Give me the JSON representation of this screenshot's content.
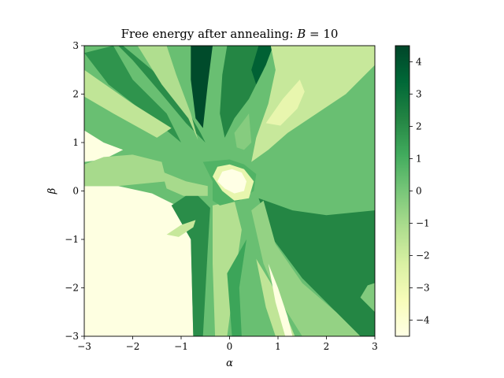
{
  "chart_data": {
    "type": "heatmap",
    "title": "Free energy after annealing: B = 10",
    "title_parts": {
      "prefix": "Free energy after annealing: ",
      "var": "B",
      "rest": " = 10"
    },
    "xlabel": "α",
    "ylabel": "β",
    "xlim": [
      -3,
      3
    ],
    "ylim": [
      -3,
      3
    ],
    "xticks": [
      -3,
      -2,
      -1,
      0,
      1,
      2,
      3
    ],
    "yticks": [
      -3,
      -2,
      -1,
      0,
      1,
      2,
      3
    ],
    "xtick_labels": [
      "−3",
      "−2",
      "−1",
      "0",
      "1",
      "2",
      "3"
    ],
    "ytick_labels": [
      "−3",
      "−2",
      "−1",
      "0",
      "1",
      "2",
      "3"
    ],
    "colormap": "YlGn",
    "colormap_stops": [
      "#ffffe5",
      "#f7fcb9",
      "#d9f0a3",
      "#addd8e",
      "#78c679",
      "#41ab5d",
      "#238443",
      "#006837",
      "#004529"
    ],
    "colorbar": {
      "range": [
        -4.5,
        4.5
      ],
      "ticks": [
        -4,
        -3,
        -2,
        -1,
        0,
        1,
        2,
        3,
        4
      ],
      "tick_labels": [
        "−4",
        "−3",
        "−2",
        "−1",
        "0",
        "1",
        "2",
        "3",
        "4"
      ]
    },
    "regions": [
      {
        "value": 0.3,
        "polygon": [
          [
            -3,
            3
          ],
          [
            3,
            3
          ],
          [
            3,
            -3
          ],
          [
            -3,
            -3
          ]
        ]
      },
      {
        "value": -4.4,
        "polygon": [
          [
            -3,
            0.1
          ],
          [
            -2.3,
            0.1
          ],
          [
            -1.6,
            -0.05
          ],
          [
            -1.1,
            -0.3
          ],
          [
            -0.8,
            -0.9
          ],
          [
            -0.75,
            -3
          ],
          [
            -3,
            -3
          ]
        ]
      },
      {
        "value": -4.4,
        "polygon": [
          [
            -3,
            1.25
          ],
          [
            -2.6,
            1.0
          ],
          [
            -2.2,
            0.85
          ],
          [
            -2.6,
            0.65
          ],
          [
            -3,
            0.6
          ]
        ]
      },
      {
        "value": -1.0,
        "polygon": [
          [
            -3,
            0.55
          ],
          [
            -2.6,
            0.7
          ],
          [
            -2.0,
            0.75
          ],
          [
            -1.4,
            0.6
          ],
          [
            -1.3,
            0.2
          ],
          [
            -2.3,
            0.1
          ],
          [
            -3,
            0.1
          ]
        ]
      },
      {
        "value": 1.8,
        "polygon": [
          [
            -3,
            2.85
          ],
          [
            -2.5,
            2.2
          ],
          [
            -1.6,
            1.5
          ],
          [
            -1.0,
            1.0
          ],
          [
            -1.3,
            1.6
          ],
          [
            -2.0,
            2.3
          ],
          [
            -2.4,
            3
          ]
        ]
      },
      {
        "value": -1.6,
        "polygon": [
          [
            -3,
            2.5
          ],
          [
            -2.0,
            1.8
          ],
          [
            -1.2,
            1.3
          ],
          [
            -1.5,
            1.1
          ],
          [
            -2.4,
            1.6
          ],
          [
            -3,
            1.95
          ]
        ]
      },
      {
        "value": 2.0,
        "polygon": [
          [
            -2.2,
            3
          ],
          [
            -1.6,
            2.5
          ],
          [
            -1.0,
            1.9
          ],
          [
            -0.6,
            1.2
          ],
          [
            -0.5,
            1.0
          ],
          [
            -0.9,
            1.4
          ],
          [
            -1.4,
            2.0
          ],
          [
            -2.0,
            2.7
          ],
          [
            -2.3,
            3
          ]
        ]
      },
      {
        "value": -1.2,
        "polygon": [
          [
            -1.9,
            3
          ],
          [
            -1.4,
            2.2
          ],
          [
            -0.85,
            1.5
          ],
          [
            -0.65,
            1.05
          ],
          [
            -0.8,
            1.6
          ],
          [
            -1.1,
            2.4
          ],
          [
            -1.3,
            3
          ]
        ]
      },
      {
        "value": 4.3,
        "polygon": [
          [
            -0.8,
            3
          ],
          [
            -0.35,
            3
          ],
          [
            -0.45,
            2.2
          ],
          [
            -0.55,
            1.3
          ],
          [
            -0.7,
            1.5
          ],
          [
            -0.8,
            2.3
          ]
        ]
      },
      {
        "value": 2.2,
        "polygon": [
          [
            -0.05,
            3
          ],
          [
            0.8,
            3
          ],
          [
            0.7,
            2.5
          ],
          [
            0.4,
            1.9
          ],
          [
            0.1,
            1.5
          ],
          [
            -0.1,
            1.1
          ],
          [
            -0.2,
            1.6
          ],
          [
            -0.15,
            2.4
          ]
        ]
      },
      {
        "value": 3.6,
        "polygon": [
          [
            0.6,
            3
          ],
          [
            0.9,
            3
          ],
          [
            0.75,
            2.6
          ],
          [
            0.55,
            2.2
          ],
          [
            0.45,
            2.5
          ]
        ]
      },
      {
        "value": -1.8,
        "polygon": [
          [
            0.85,
            3
          ],
          [
            3,
            3
          ],
          [
            3,
            2.6
          ],
          [
            2.4,
            2.0
          ],
          [
            1.8,
            1.6
          ],
          [
            1.2,
            1.2
          ],
          [
            0.8,
            0.85
          ],
          [
            0.45,
            0.6
          ],
          [
            0.55,
            1.1
          ],
          [
            0.8,
            1.8
          ],
          [
            0.95,
            2.5
          ]
        ]
      },
      {
        "value": -2.8,
        "polygon": [
          [
            0.75,
            1.4
          ],
          [
            1.1,
            1.9
          ],
          [
            1.45,
            2.3
          ],
          [
            1.55,
            2.05
          ],
          [
            1.4,
            1.7
          ],
          [
            1.05,
            1.35
          ]
        ]
      },
      {
        "value": -0.3,
        "polygon": [
          [
            0.1,
            1.2
          ],
          [
            0.4,
            1.6
          ],
          [
            0.45,
            1.0
          ],
          [
            0.3,
            0.85
          ],
          [
            0.15,
            0.9
          ]
        ]
      },
      {
        "value": 2.0,
        "polygon": [
          [
            -1.2,
            -0.3
          ],
          [
            -0.75,
            0.0
          ],
          [
            -0.4,
            -0.35
          ],
          [
            -0.45,
            -1.2
          ],
          [
            -0.55,
            -3
          ],
          [
            -0.75,
            -3
          ],
          [
            -0.8,
            -1.0
          ]
        ]
      },
      {
        "value": -1.3,
        "polygon": [
          [
            -0.35,
            -0.3
          ],
          [
            0.1,
            -0.2
          ],
          [
            0.25,
            -0.8
          ],
          [
            0.15,
            -1.5
          ],
          [
            -0.05,
            -3
          ],
          [
            -0.3,
            -3
          ],
          [
            -0.35,
            -1.5
          ]
        ]
      },
      {
        "value": 1.3,
        "polygon": [
          [
            -0.05,
            -1.7
          ],
          [
            0.35,
            -1.0
          ],
          [
            0.2,
            -2.0
          ],
          [
            0.25,
            -3
          ],
          [
            0.05,
            -3
          ]
        ]
      },
      {
        "value": 2.2,
        "polygon": [
          [
            0.6,
            -0.15
          ],
          [
            1.3,
            -0.4
          ],
          [
            2.0,
            -0.5
          ],
          [
            3,
            -0.4
          ],
          [
            3,
            -3
          ],
          [
            2.7,
            -3
          ],
          [
            2.1,
            -2.4
          ],
          [
            1.5,
            -1.8
          ],
          [
            0.9,
            -1.0
          ]
        ]
      },
      {
        "value": -0.6,
        "polygon": [
          [
            0.45,
            -0.4
          ],
          [
            0.7,
            -0.2
          ],
          [
            0.95,
            -1.1
          ],
          [
            1.5,
            -1.9
          ],
          [
            2.2,
            -2.5
          ],
          [
            2.7,
            -3
          ],
          [
            1.5,
            -3
          ],
          [
            1.0,
            -2.2
          ],
          [
            0.7,
            -1.5
          ]
        ]
      },
      {
        "value": -1.6,
        "polygon": [
          [
            0.55,
            -1.4
          ],
          [
            0.85,
            -1.9
          ],
          [
            1.1,
            -2.4
          ],
          [
            1.35,
            -3
          ],
          [
            0.95,
            -3
          ],
          [
            0.75,
            -2.4
          ]
        ]
      },
      {
        "value": -4.4,
        "polygon": [
          [
            0.8,
            -1.5
          ],
          [
            1.0,
            -2.0
          ],
          [
            1.2,
            -2.6
          ],
          [
            1.3,
            -3
          ],
          [
            1.15,
            -3
          ],
          [
            0.95,
            -2.3
          ]
        ]
      },
      {
        "value": -0.2,
        "polygon": [
          [
            2.7,
            -2.2
          ],
          [
            3,
            -2.5
          ],
          [
            3,
            -1.9
          ],
          [
            2.85,
            -1.95
          ]
        ]
      },
      {
        "value": -1.0,
        "polygon": [
          [
            -1.4,
            0.4
          ],
          [
            -0.9,
            0.2
          ],
          [
            -0.45,
            0.1
          ],
          [
            -0.45,
            -0.1
          ],
          [
            -0.95,
            -0.1
          ],
          [
            -1.3,
            0.05
          ]
        ]
      },
      {
        "value": -1.8,
        "polygon": [
          [
            -1.3,
            -0.9
          ],
          [
            -1.0,
            -0.7
          ],
          [
            -0.7,
            -0.6
          ],
          [
            -0.75,
            -0.75
          ],
          [
            -1.05,
            -0.95
          ]
        ]
      },
      {
        "value": 0.8,
        "polygon": [
          [
            -0.55,
            0.6
          ],
          [
            -0.35,
            0.2
          ],
          [
            -0.35,
            -0.2
          ],
          [
            -0.2,
            -0.3
          ],
          [
            0.2,
            -0.2
          ],
          [
            0.5,
            0.0
          ],
          [
            0.55,
            0.35
          ],
          [
            0.3,
            0.55
          ],
          [
            0.0,
            0.65
          ]
        ]
      },
      {
        "value": -2.8,
        "polygon": [
          [
            -0.35,
            0.3
          ],
          [
            -0.15,
            0.0
          ],
          [
            0.1,
            -0.2
          ],
          [
            0.4,
            -0.15
          ],
          [
            0.5,
            0.2
          ],
          [
            0.3,
            0.45
          ],
          [
            0.0,
            0.55
          ],
          [
            -0.25,
            0.5
          ]
        ]
      },
      {
        "value": -4.5,
        "polygon": [
          [
            -0.25,
            0.2
          ],
          [
            -0.1,
            0.05
          ],
          [
            0.1,
            -0.05
          ],
          [
            0.3,
            0.0
          ],
          [
            0.35,
            0.2
          ],
          [
            0.25,
            0.38
          ],
          [
            0.05,
            0.45
          ],
          [
            -0.15,
            0.4
          ]
        ]
      }
    ]
  }
}
